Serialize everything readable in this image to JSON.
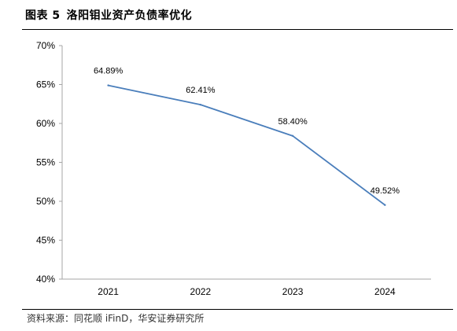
{
  "figure": {
    "number": "图表 5",
    "title": "洛阳钼业资产负债率优化",
    "source": "资料来源：同花顺 iFinD，华安证券研究所"
  },
  "colors": {
    "line": "#4a7ebb",
    "axis": "#a6a6a6",
    "text": "#000000"
  },
  "chart_data": {
    "type": "line",
    "categories": [
      "2021",
      "2022",
      "2023",
      "2024"
    ],
    "series": [
      {
        "values": [
          64.89,
          62.41,
          58.4,
          49.52
        ],
        "labels": [
          "64.89%",
          "62.41%",
          "58.40%",
          "49.52%"
        ]
      }
    ],
    "ylim": [
      40,
      70
    ],
    "yticks": [
      40,
      45,
      50,
      55,
      60,
      65,
      70
    ],
    "ytick_labels": [
      "40%",
      "45%",
      "50%",
      "55%",
      "60%",
      "65%",
      "70%"
    ],
    "grid": false,
    "legend": "none"
  }
}
